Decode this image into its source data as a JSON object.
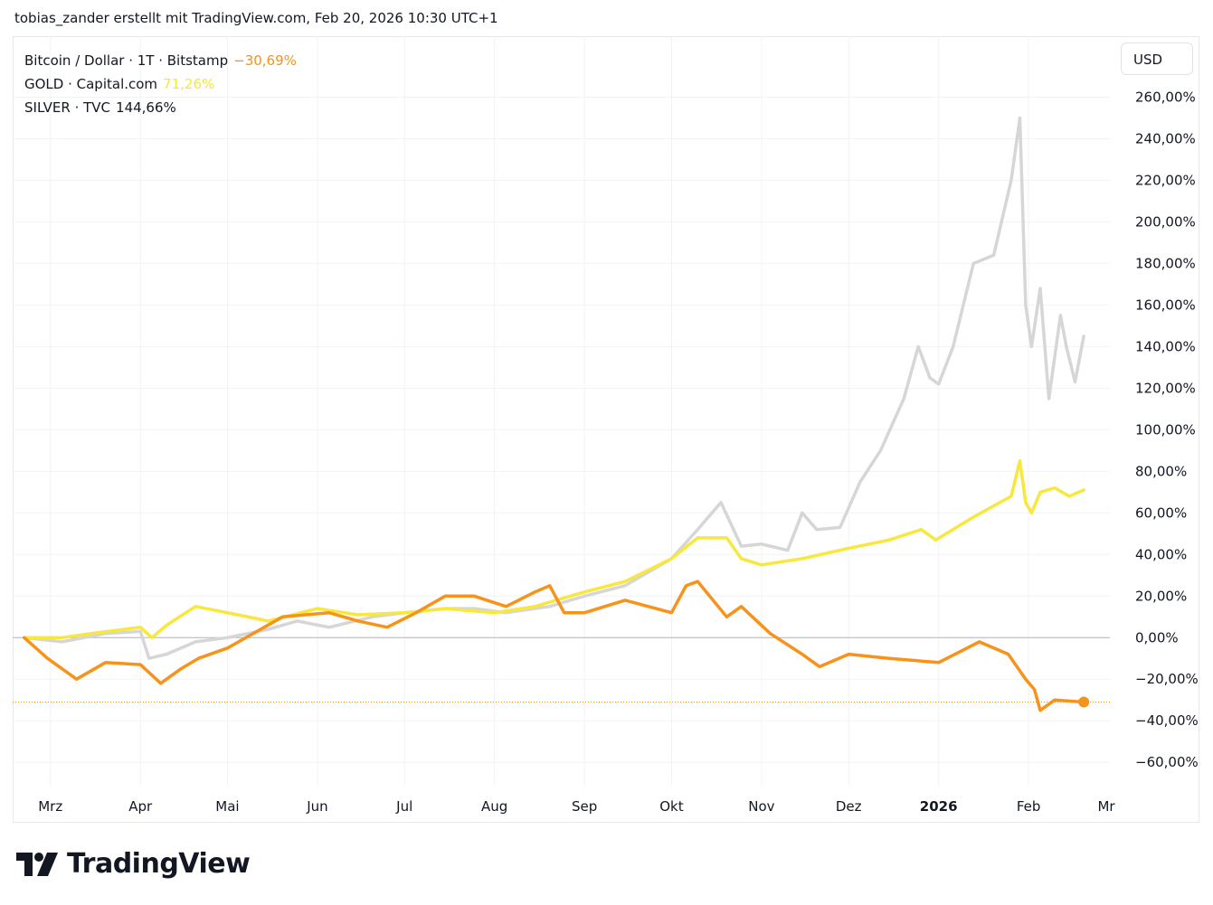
{
  "header": {
    "title": "tobias_zander erstellt mit TradingView.com, Feb 20, 2026 10:30 UTC+1"
  },
  "legend": [
    {
      "name": "Bitcoin / Dollar · 1T · Bitstamp",
      "change": "−30,69%",
      "color": "#f7931a"
    },
    {
      "name": "GOLD · Capital.com",
      "change": "71,26%",
      "color": "#f5e63b"
    },
    {
      "name": "SILVER · TVC",
      "change": "144,66%",
      "color": "#131722"
    }
  ],
  "currency_button": {
    "label": "USD"
  },
  "brand": {
    "name": "TradingView",
    "logo": "tradingview-logo-icon"
  },
  "chart_data": {
    "type": "line",
    "xlabel": "",
    "ylabel": "",
    "x_ticks": [
      "Mrz",
      "Apr",
      "Mai",
      "Jun",
      "Jul",
      "Aug",
      "Sep",
      "Okt",
      "Nov",
      "Dez",
      "2026",
      "Feb",
      "Mr"
    ],
    "y_ticks": [
      "260,00%",
      "240,00%",
      "220,00%",
      "200,00%",
      "180,00%",
      "160,00%",
      "140,00%",
      "120,00%",
      "100,00%",
      "80,00%",
      "60,00%",
      "40,00%",
      "20,00%",
      "0,00%",
      "−20,00%",
      "−40,00%",
      "−60,00%"
    ],
    "y_tick_values": [
      260,
      240,
      220,
      200,
      180,
      160,
      140,
      120,
      100,
      80,
      60,
      40,
      20,
      0,
      -20,
      -40,
      -60
    ],
    "ylim": [
      -66,
      285
    ],
    "grid": true,
    "legend_position": "top-left",
    "series": [
      {
        "name": "SILVER · TVC",
        "color": "#d6d6d6",
        "x": [
          "2025-02-20",
          "2025-03-05",
          "2025-03-20",
          "2025-04-01",
          "2025-04-04",
          "2025-04-10",
          "2025-04-20",
          "2025-05-01",
          "2025-05-15",
          "2025-05-25",
          "2025-06-05",
          "2025-06-20",
          "2025-07-01",
          "2025-07-15",
          "2025-07-25",
          "2025-08-05",
          "2025-08-20",
          "2025-09-01",
          "2025-09-15",
          "2025-10-01",
          "2025-10-10",
          "2025-10-18",
          "2025-10-25",
          "2025-11-01",
          "2025-11-10",
          "2025-11-15",
          "2025-11-20",
          "2025-11-28",
          "2025-12-05",
          "2025-12-12",
          "2025-12-20",
          "2025-12-25",
          "2025-12-29",
          "2026-01-01",
          "2026-01-06",
          "2026-01-13",
          "2026-01-20",
          "2026-01-26",
          "2026-01-29",
          "2026-01-31",
          "2026-02-02",
          "2026-02-05",
          "2026-02-08",
          "2026-02-12",
          "2026-02-14",
          "2026-02-17",
          "2026-02-20"
        ],
        "values": [
          0,
          -2,
          2,
          3,
          -10,
          -8,
          -2,
          0,
          4,
          8,
          5,
          10,
          12,
          14,
          14,
          12,
          15,
          20,
          25,
          38,
          52,
          65,
          44,
          45,
          42,
          60,
          52,
          53,
          75,
          90,
          115,
          140,
          125,
          122,
          140,
          180,
          184,
          220,
          250,
          160,
          140,
          168,
          115,
          155,
          140,
          123,
          145
        ]
      },
      {
        "name": "GOLD · Capital.com",
        "color": "#f8e73c",
        "x": [
          "2025-02-20",
          "2025-03-05",
          "2025-03-15",
          "2025-04-01",
          "2025-04-05",
          "2025-04-10",
          "2025-04-20",
          "2025-05-01",
          "2025-05-15",
          "2025-06-01",
          "2025-06-15",
          "2025-07-01",
          "2025-07-15",
          "2025-08-01",
          "2025-08-15",
          "2025-09-01",
          "2025-09-15",
          "2025-10-01",
          "2025-10-10",
          "2025-10-20",
          "2025-10-25",
          "2025-11-01",
          "2025-11-15",
          "2025-12-01",
          "2025-12-15",
          "2025-12-26",
          "2025-12-31",
          "2026-01-13",
          "2026-01-26",
          "2026-01-29",
          "2026-01-31",
          "2026-02-02",
          "2026-02-05",
          "2026-02-10",
          "2026-02-15",
          "2026-02-20"
        ],
        "values": [
          0,
          0,
          2,
          5,
          0,
          6,
          15,
          12,
          8,
          14,
          11,
          12,
          14,
          12,
          15,
          22,
          27,
          38,
          48,
          48,
          38,
          35,
          38,
          43,
          47,
          52,
          47,
          58,
          68,
          85,
          65,
          60,
          70,
          72,
          68,
          71
        ]
      },
      {
        "name": "Bitcoin / Dollar · 1T · Bitstamp",
        "color": "#f7931a",
        "x": [
          "2025-02-20",
          "2025-02-28",
          "2025-03-05",
          "2025-03-10",
          "2025-03-20",
          "2025-04-01",
          "2025-04-08",
          "2025-04-15",
          "2025-04-21",
          "2025-05-01",
          "2025-05-20",
          "2025-06-05",
          "2025-06-15",
          "2025-06-25",
          "2025-07-05",
          "2025-07-15",
          "2025-07-25",
          "2025-08-05",
          "2025-08-15",
          "2025-08-20",
          "2025-08-25",
          "2025-09-01",
          "2025-09-15",
          "2025-10-01",
          "2025-10-06",
          "2025-10-10",
          "2025-10-20",
          "2025-10-25",
          "2025-11-04",
          "2025-11-15",
          "2025-11-21",
          "2025-12-01",
          "2025-12-15",
          "2026-01-01",
          "2026-01-15",
          "2026-01-25",
          "2026-01-31",
          "2026-02-03",
          "2026-02-05",
          "2026-02-10",
          "2026-02-20"
        ],
        "values": [
          0,
          -10,
          -15,
          -20,
          -12,
          -13,
          -22,
          -15,
          -10,
          -5,
          10,
          12,
          8,
          5,
          12,
          20,
          20,
          15,
          22,
          25,
          12,
          12,
          18,
          12,
          25,
          27,
          10,
          15,
          2,
          -8,
          -14,
          -8,
          -10,
          -12,
          -2,
          -8,
          -20,
          -25,
          -35,
          -30,
          -31
        ]
      }
    ]
  }
}
